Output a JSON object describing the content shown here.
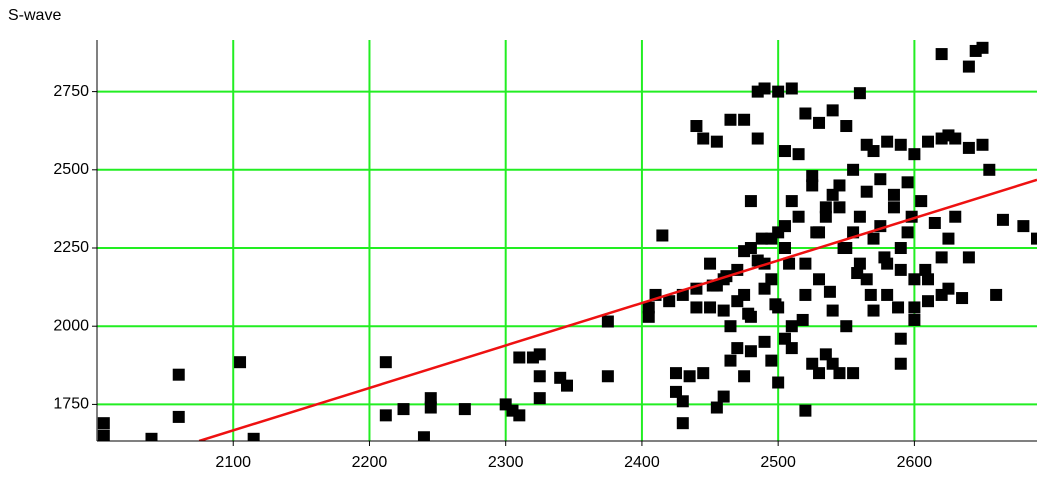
{
  "chart_data": {
    "type": "scatter",
    "y_label": "S-wave",
    "xlim": [
      2000,
      2690
    ],
    "ylim": [
      1633,
      2915
    ],
    "xticks": [
      2100,
      2200,
      2300,
      2400,
      2500,
      2600
    ],
    "yticks": [
      1750,
      2000,
      2250,
      2500,
      2750
    ],
    "grid": true,
    "grid_color": "#22ee22",
    "series": [
      {
        "color": "#000000",
        "x": [
          2005,
          2005,
          2040,
          2060,
          2060,
          2105,
          2115,
          2212,
          2212,
          2225,
          2240,
          2245,
          2245,
          2270,
          2300,
          2305,
          2310,
          2310,
          2320,
          2325,
          2325,
          2325,
          2340,
          2345,
          2375,
          2375,
          2415,
          2405,
          2410,
          2405,
          2425,
          2425,
          2430,
          2430,
          2435,
          2445,
          2455,
          2460,
          2465,
          2470,
          2475,
          2480,
          2490,
          2495,
          2500,
          2505,
          2510,
          2520,
          2525,
          2530,
          2535,
          2540,
          2545,
          2555,
          2590,
          2590,
          2440,
          2445,
          2455,
          2465,
          2475,
          2485,
          2490,
          2500,
          2510,
          2480,
          2485,
          2505,
          2520,
          2530,
          2540,
          2550,
          2560,
          2565,
          2570,
          2580,
          2590,
          2600,
          2610,
          2620,
          2625,
          2630,
          2640,
          2650,
          2620,
          2640,
          2645,
          2650,
          2655,
          2665,
          2680,
          2690,
          2640,
          2660,
          2620,
          2600,
          2610,
          2420,
          2430,
          2440,
          2450,
          2460,
          2470,
          2475,
          2480,
          2490,
          2495,
          2500,
          2505,
          2510,
          2515,
          2520,
          2525,
          2530,
          2535,
          2540,
          2545,
          2550,
          2555,
          2560,
          2565,
          2570,
          2575,
          2580,
          2585,
          2590,
          2595,
          2600,
          2605,
          2615,
          2625,
          2630,
          2450,
          2460,
          2470,
          2480,
          2490,
          2500,
          2510,
          2520,
          2530,
          2540,
          2550,
          2560,
          2570,
          2580,
          2590,
          2600,
          2610,
          2620,
          2440,
          2455,
          2465,
          2478,
          2488,
          2498,
          2508,
          2518,
          2528,
          2538,
          2548,
          2558,
          2568,
          2578,
          2588,
          2598,
          2608,
          2625,
          2635,
          2535,
          2545,
          2555,
          2565,
          2575,
          2585,
          2595,
          2515,
          2525,
          2505,
          2495,
          2485,
          2475,
          2462,
          2452
        ],
        "y": [
          1690,
          1650,
          1640,
          1845,
          1710,
          1885,
          1640,
          1885,
          1715,
          1735,
          1645,
          1770,
          1740,
          1735,
          1750,
          1730,
          1900,
          1715,
          1900,
          1910,
          1770,
          1840,
          1835,
          1810,
          2015,
          1840,
          2290,
          2060,
          2100,
          2030,
          1850,
          1790,
          1690,
          1760,
          1840,
          1850,
          1740,
          1775,
          1890,
          1930,
          1840,
          1920,
          1950,
          1890,
          1820,
          1960,
          1930,
          1730,
          1880,
          1850,
          1910,
          1880,
          1850,
          1850,
          1880,
          1960,
          2640,
          2600,
          2590,
          2660,
          2660,
          2750,
          2760,
          2750,
          2760,
          2400,
          2600,
          2560,
          2680,
          2650,
          2690,
          2640,
          2745,
          2580,
          2560,
          2590,
          2580,
          2550,
          2590,
          2600,
          2610,
          2600,
          2570,
          2580,
          2870,
          2830,
          2880,
          2890,
          2500,
          2340,
          2320,
          2280,
          2220,
          2100,
          2220,
          2060,
          2080,
          2080,
          2100,
          2120,
          2060,
          2150,
          2180,
          2100,
          2250,
          2200,
          2150,
          2300,
          2250,
          2400,
          2350,
          2200,
          2450,
          2300,
          2350,
          2420,
          2380,
          2250,
          2300,
          2350,
          2150,
          2280,
          2320,
          2200,
          2380,
          2250,
          2300,
          2150,
          2400,
          2330,
          2280,
          2350,
          2200,
          2050,
          2080,
          2030,
          2120,
          2060,
          2000,
          2100,
          2150,
          2050,
          2000,
          2200,
          2050,
          2100,
          2180,
          2020,
          2150,
          2100,
          2060,
          2130,
          2000,
          2040,
          2280,
          2070,
          2200,
          2020,
          2300,
          2110,
          2250,
          2170,
          2100,
          2220,
          2060,
          2350,
          2180,
          2120,
          2090,
          2380,
          2450,
          2500,
          2430,
          2470,
          2420,
          2460,
          2550,
          2480,
          2320,
          2280,
          2210,
          2240,
          2160,
          2130
        ]
      }
    ],
    "fit": {
      "color": "#ee1111",
      "x": [
        2075,
        2690
      ],
      "y": [
        1633,
        2468
      ]
    }
  }
}
